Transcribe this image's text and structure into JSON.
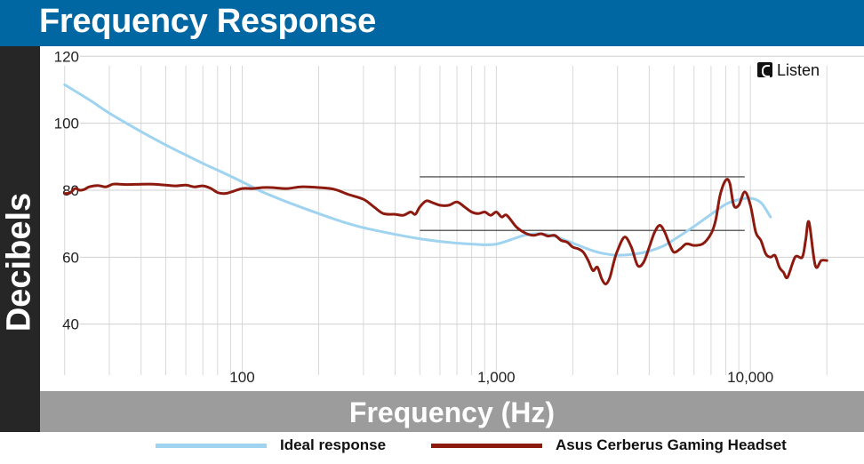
{
  "title": "Frequency Response",
  "chart_data": {
    "type": "line",
    "title": "Frequency Response",
    "xlabel": "Frequency (Hz)",
    "ylabel": "Decibels",
    "xscale": "log",
    "xlim": [
      16,
      28000
    ],
    "ylim": [
      20,
      123
    ],
    "yticks": [
      40,
      60,
      80,
      100,
      120
    ],
    "xticks": [
      {
        "value": 100,
        "label": "100"
      },
      {
        "value": 1000,
        "label": "1,000"
      },
      {
        "value": 10000,
        "label": "10,000"
      }
    ],
    "grid": true,
    "brand": "Listen",
    "reference_lines": [
      {
        "x": [
          500,
          9500
        ],
        "y": 84
      },
      {
        "x": [
          500,
          9500
        ],
        "y": 68
      }
    ],
    "series": [
      {
        "name": "Ideal response",
        "color": "#9fd3f0",
        "x": [
          20,
          25,
          30,
          40,
          50,
          60,
          70,
          80,
          100,
          120,
          150,
          200,
          250,
          300,
          400,
          500,
          600,
          700,
          800,
          900,
          1000,
          1100,
          1200,
          1300,
          1500,
          1700,
          2000,
          2300,
          2600,
          3000,
          3500,
          4000,
          4500,
          5000,
          6000,
          7000,
          8000,
          9000,
          10000,
          11000,
          12000
        ],
        "values": [
          111.5,
          107,
          103,
          97.5,
          93.5,
          90.5,
          88,
          86,
          82.5,
          79.5,
          76.5,
          73,
          70.5,
          68.8,
          66.8,
          65.5,
          64.7,
          64.2,
          63.9,
          63.7,
          63.9,
          64.8,
          65.8,
          66.6,
          67,
          66.2,
          64.2,
          62.4,
          61.2,
          60.6,
          60.9,
          61.8,
          63.2,
          65.2,
          69.2,
          72.8,
          75.8,
          77.2,
          77.6,
          76.3,
          72
        ]
      },
      {
        "name": "Asus Cerberus Gaming Headset",
        "color": "#8c1a0f",
        "x": [
          20,
          21,
          22,
          23,
          24,
          25,
          27,
          29,
          31,
          33,
          35,
          40,
          45,
          50,
          55,
          60,
          65,
          70,
          75,
          80,
          85,
          90,
          100,
          110,
          120,
          130,
          150,
          170,
          200,
          230,
          260,
          300,
          330,
          360,
          400,
          430,
          460,
          480,
          500,
          530,
          560,
          600,
          650,
          700,
          750,
          800,
          850,
          900,
          950,
          1000,
          1050,
          1100,
          1200,
          1300,
          1400,
          1500,
          1600,
          1700,
          1800,
          1900,
          2000,
          2100,
          2200,
          2300,
          2400,
          2500,
          2600,
          2700,
          2800,
          2900,
          3000,
          3200,
          3400,
          3600,
          3800,
          4000,
          4200,
          4400,
          4600,
          4800,
          5000,
          5300,
          5600,
          6000,
          6500,
          7000,
          7300,
          7600,
          8000,
          8300,
          8600,
          9000,
          9500,
          10000,
          10500,
          11000,
          11500,
          12000,
          12500,
          13000,
          13500,
          14000,
          15000,
          16000,
          16500,
          17000,
          18000,
          19000,
          20000
        ],
        "values": [
          79,
          79.2,
          80.5,
          80,
          80.3,
          81,
          81.4,
          81,
          81.8,
          81.8,
          81.7,
          81.8,
          81.8,
          81.5,
          81.3,
          81.5,
          81,
          81.3,
          80.6,
          79.3,
          79,
          79.4,
          80.5,
          80.5,
          80.8,
          80.8,
          80.5,
          81,
          80.8,
          80.3,
          78.8,
          77.3,
          75,
          73,
          72.8,
          72.5,
          73.5,
          72.8,
          75,
          76.8,
          76.3,
          75.5,
          75.5,
          76.5,
          75,
          73.5,
          73,
          73.5,
          72.5,
          73.5,
          72,
          72.5,
          69,
          67.2,
          66.5,
          67,
          66.3,
          66.5,
          65,
          64.5,
          63,
          62.5,
          61.5,
          59,
          56,
          57,
          53.5,
          52,
          54,
          58.5,
          62,
          66,
          63,
          57.5,
          58.5,
          63,
          67.5,
          69.5,
          67.5,
          64,
          61.5,
          62.5,
          64,
          63.5,
          64,
          67,
          71,
          78.5,
          83,
          82,
          75.5,
          75.5,
          79.5,
          75.5,
          67.5,
          65,
          61,
          60,
          60.5,
          57,
          55.5,
          54,
          60,
          60,
          65,
          70.5,
          57.5,
          59,
          59
        ]
      }
    ]
  },
  "legend": {
    "ideal_label": "Ideal response",
    "headset_label": "Asus Cerberus Gaming Headset"
  }
}
